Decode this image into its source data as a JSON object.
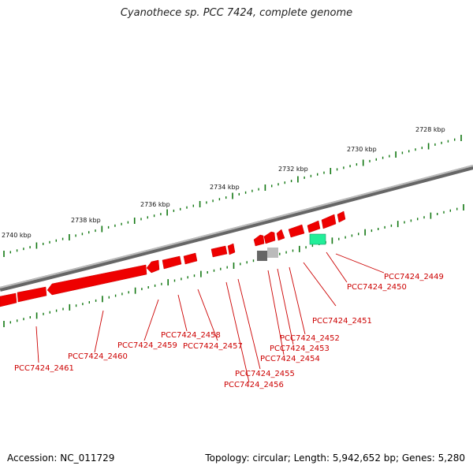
{
  "title": "Cyanothece sp. PCC 7424, complete genome",
  "footer": {
    "accession": "Accession: NC_011729",
    "info": "Topology: circular; Length: 5,942,652 bp; Genes: 5,280"
  },
  "colors": {
    "gene_forward": "#ee0000",
    "gene_highlight": "#22ee99",
    "gene_dark": "#666666",
    "gene_light": "#bbbbbb",
    "tick": "#117711",
    "label": "#cc0000",
    "backbone": "#888888"
  },
  "scale": {
    "labels": [
      "2728 kbp",
      "2730 kbp",
      "2732 kbp",
      "2734 kbp",
      "2736 kbp",
      "2738 kbp",
      "2740 kbp"
    ]
  },
  "genes": [
    "PCC7424_2449",
    "PCC7424_2450",
    "PCC7424_2451",
    "PCC7424_2452",
    "PCC7424_2453",
    "PCC7424_2454",
    "PCC7424_2455",
    "PCC7424_2456",
    "PCC7424_2457",
    "PCC7424_2458",
    "PCC7424_2459",
    "PCC7424_2460",
    "PCC7424_2461"
  ]
}
